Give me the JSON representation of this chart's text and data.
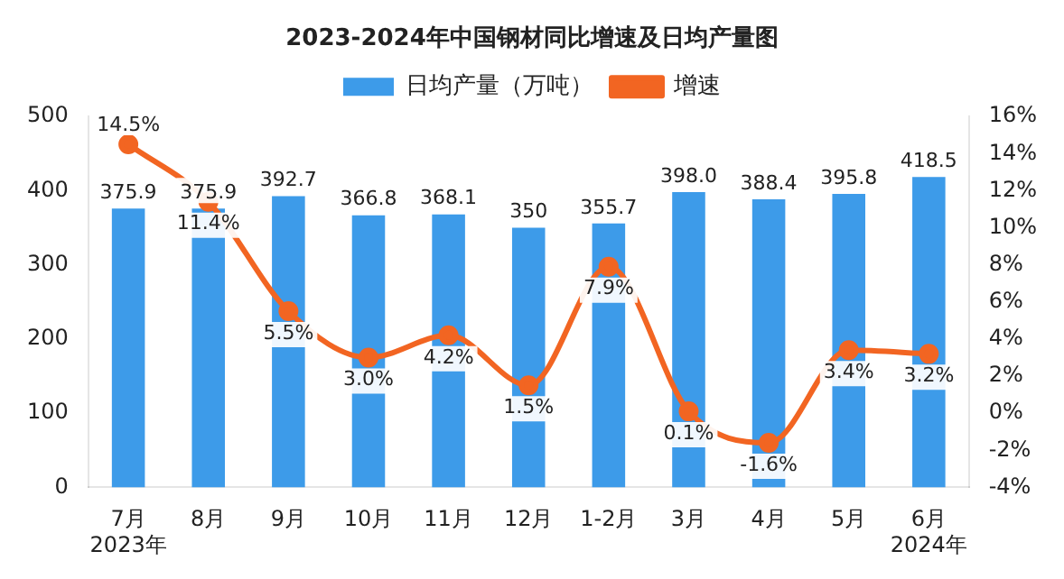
{
  "chart_data": {
    "type": "bar",
    "title": "2023-2024年中国钢材同比增速及日均产量图",
    "categories": [
      "7月\n2023年",
      "8月",
      "9月",
      "10月",
      "11月",
      "12月",
      "1-2月",
      "3月",
      "4月",
      "5月",
      "6月\n2024年"
    ],
    "series": [
      {
        "name": "日均产量（万吨）",
        "color": "#3d9be9",
        "values": [
          375.9,
          375.9,
          392.7,
          366.8,
          368.1,
          350,
          355.7,
          398.0,
          388.4,
          395.8,
          418.5
        ],
        "value_labels": [
          "375.9",
          "375.9",
          "392.7",
          "366.8",
          "368.1",
          "350",
          "355.7",
          "398.0",
          "388.4",
          "395.8",
          "418.5"
        ]
      },
      {
        "name": "增速",
        "type": "line",
        "axis": "y2",
        "color": "#f26522",
        "marker": "circle",
        "values": [
          14.5,
          11.4,
          5.5,
          3.0,
          4.2,
          1.5,
          7.9,
          0.1,
          -1.6,
          3.4,
          3.2
        ],
        "value_labels": [
          "14.5%",
          "11.4%",
          "5.5%",
          "3.0%",
          "4.2%",
          "1.5%",
          "7.9%",
          "0.1%",
          "-1.6%",
          "3.4%",
          "3.2%"
        ]
      }
    ],
    "ylim": [
      0,
      500
    ],
    "yticks": [
      0,
      100,
      200,
      300,
      400,
      500
    ],
    "y2lim": [
      -4,
      16
    ],
    "y2ticks": [
      {
        "value": -4,
        "label": "-4%"
      },
      {
        "value": -2,
        "label": "-2%"
      },
      {
        "value": 0,
        "label": "0%"
      },
      {
        "value": 2,
        "label": "2%"
      },
      {
        "value": 4,
        "label": "4%"
      },
      {
        "value": 6,
        "label": "6%"
      },
      {
        "value": 8,
        "label": "8%"
      },
      {
        "value": 10,
        "label": "10%"
      },
      {
        "value": 12,
        "label": "12%"
      },
      {
        "value": 14,
        "label": "14%"
      },
      {
        "value": 16,
        "label": "16%"
      }
    ],
    "grid": false,
    "legend": "top"
  }
}
